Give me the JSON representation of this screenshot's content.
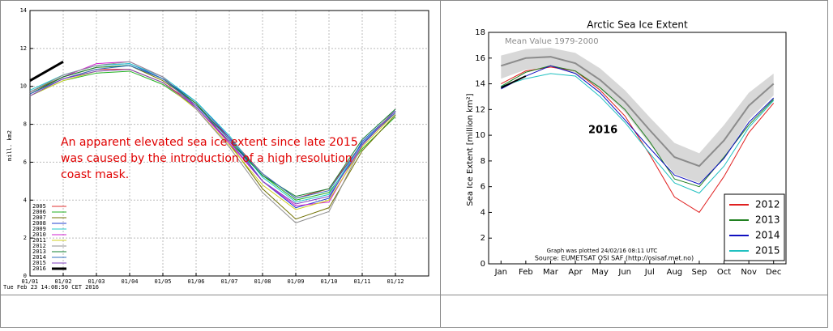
{
  "chart_data": [
    {
      "type": "line",
      "ylabel": "mill. km2",
      "categories": [
        "01/01",
        "01/02",
        "01/03",
        "01/04",
        "01/05",
        "01/06",
        "01/07",
        "01/08",
        "01/09",
        "01/10",
        "01/11",
        "01/12"
      ],
      "ylim": [
        0,
        14
      ],
      "yticks": [
        0,
        2,
        4,
        6,
        8,
        10,
        12,
        14
      ],
      "grid": true,
      "annotation": [
        "An apparent elevated sea ice extent since late 2015",
        "was caused by the introduction of a high resolution",
        "coast mask."
      ],
      "footer": "Tue Feb 23 14:08:50 CET 2016",
      "series": [
        {
          "name": "2005",
          "color": "#e03030",
          "values": [
            9.6,
            10.4,
            10.9,
            10.9,
            10.2,
            9.0,
            7.3,
            5.4,
            4.1,
            4.6,
            7.0,
            8.6
          ]
        },
        {
          "name": "2006",
          "color": "#20b020",
          "values": [
            9.5,
            10.3,
            10.7,
            10.8,
            10.1,
            8.9,
            7.1,
            5.3,
            4.0,
            4.4,
            6.7,
            8.4
          ]
        },
        {
          "name": "2007",
          "color": "#707000",
          "values": [
            9.7,
            10.5,
            11.0,
            11.1,
            10.3,
            9.1,
            7.0,
            4.6,
            3.0,
            3.6,
            6.6,
            8.5
          ]
        },
        {
          "name": "2008",
          "color": "#2040d0",
          "values": [
            9.7,
            10.6,
            11.1,
            11.2,
            10.4,
            9.2,
            7.3,
            5.0,
            3.6,
            4.1,
            7.1,
            8.7
          ]
        },
        {
          "name": "2009",
          "color": "#20c8c8",
          "values": [
            9.8,
            10.6,
            11.1,
            11.2,
            10.5,
            9.2,
            7.4,
            5.2,
            3.9,
            4.3,
            7.0,
            8.7
          ]
        },
        {
          "name": "2010",
          "color": "#d020d0",
          "values": [
            9.6,
            10.5,
            11.2,
            11.3,
            10.5,
            8.9,
            7.0,
            5.0,
            3.7,
            3.9,
            6.9,
            8.8
          ]
        },
        {
          "name": "2011",
          "color": "#d0d020",
          "values": [
            9.5,
            10.3,
            10.8,
            10.9,
            10.2,
            8.8,
            6.9,
            4.8,
            3.5,
            4.0,
            6.8,
            8.6
          ]
        },
        {
          "name": "2012",
          "color": "#909090",
          "values": [
            9.7,
            10.6,
            11.1,
            11.3,
            10.5,
            8.8,
            6.8,
            4.4,
            2.8,
            3.4,
            6.9,
            8.8
          ]
        },
        {
          "name": "2013",
          "color": "#108030",
          "values": [
            9.6,
            10.5,
            11.0,
            11.1,
            10.4,
            9.1,
            7.2,
            5.3,
            4.2,
            4.6,
            7.2,
            8.8
          ]
        },
        {
          "name": "2014",
          "color": "#3070c0",
          "values": [
            9.6,
            10.4,
            10.9,
            11.1,
            10.4,
            9.0,
            7.2,
            5.4,
            4.1,
            4.5,
            7.0,
            8.6
          ]
        },
        {
          "name": "2015",
          "color": "#8040c0",
          "values": [
            9.5,
            10.4,
            10.8,
            10.9,
            10.2,
            8.9,
            7.1,
            5.0,
            3.8,
            4.2,
            6.9,
            8.7
          ]
        },
        {
          "name": "2016",
          "color": "#000000",
          "width": 3,
          "values": [
            10.3,
            11.3,
            null,
            null,
            null,
            null,
            null,
            null,
            null,
            null,
            null,
            null
          ]
        }
      ]
    },
    {
      "type": "line",
      "title": "Arctic Sea Ice Extent",
      "ylabel": "Sea Ice Extent [million km²]",
      "categories": [
        "Jan",
        "Feb",
        "Mar",
        "Apr",
        "May",
        "Jun",
        "Jul",
        "Aug",
        "Sep",
        "Oct",
        "Nov",
        "Dec"
      ],
      "ylim": [
        0,
        18
      ],
      "yticks": [
        0,
        2,
        4,
        6,
        8,
        10,
        12,
        14,
        16,
        18
      ],
      "grid": false,
      "legend": "lower right",
      "band": {
        "color": "#d8d8d8",
        "low": [
          14.4,
          15.1,
          15.3,
          14.8,
          13.6,
          11.8,
          9.3,
          7.0,
          6.3,
          8.2,
          11.2,
          13.1
        ],
        "high": [
          16.2,
          16.7,
          16.8,
          16.4,
          15.2,
          13.5,
          11.4,
          9.4,
          8.6,
          10.8,
          13.3,
          14.8
        ]
      },
      "annotations": [
        "2016",
        "Graph was plotted 24/02/16 08:11 UTC",
        "Source: EUMETSAT OSI SAF (http://osisaf.met.no)"
      ],
      "series": [
        {
          "name": "Mean Value 1979-2000",
          "color": "#8c8c8c",
          "width": 2,
          "in_legend": false,
          "values": [
            15.4,
            16.0,
            16.1,
            15.6,
            14.3,
            12.6,
            10.4,
            8.3,
            7.6,
            9.6,
            12.3,
            14.0
          ]
        },
        {
          "name": "2012",
          "color": "#e02020",
          "values": [
            14.0,
            15.0,
            15.3,
            15.0,
            13.5,
            11.5,
            8.5,
            5.2,
            4.0,
            6.8,
            10.2,
            12.5
          ]
        },
        {
          "name": "2013",
          "color": "#208020",
          "values": [
            13.8,
            14.9,
            15.4,
            15.0,
            13.7,
            12.0,
            9.5,
            6.6,
            6.0,
            8.3,
            10.8,
            12.8
          ]
        },
        {
          "name": "2014",
          "color": "#1010c0",
          "values": [
            13.6,
            14.6,
            15.4,
            14.8,
            13.3,
            11.2,
            9.0,
            6.9,
            6.2,
            8.2,
            11.0,
            12.9
          ]
        },
        {
          "name": "2015",
          "color": "#20c0c0",
          "values": [
            13.8,
            14.4,
            14.8,
            14.6,
            13.0,
            11.0,
            8.6,
            6.3,
            5.5,
            7.6,
            10.6,
            12.7
          ]
        },
        {
          "name": "2016",
          "color": "#000000",
          "width": 2,
          "in_legend": false,
          "values": [
            13.7,
            14.6,
            null,
            null,
            null,
            null,
            null,
            null,
            null,
            null,
            null,
            null
          ]
        }
      ]
    }
  ]
}
